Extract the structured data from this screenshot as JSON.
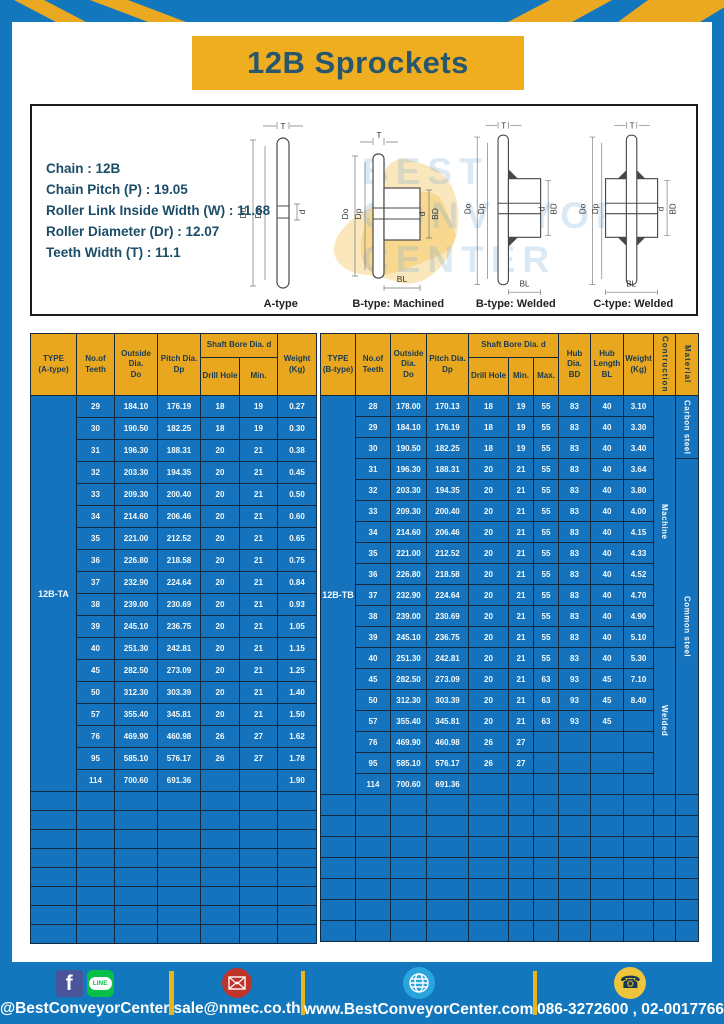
{
  "page": {
    "title": "12B Sprockets"
  },
  "specs": {
    "lines": [
      "Chain  :  12B",
      "Chain Pitch (P)  :  19.05",
      "Roller Link Inside Width (W) : 11.68",
      "Roller Diameter (Dr)  : 12.07",
      "Teeth Width (T)  :  11.1"
    ]
  },
  "diagrams": {
    "labels": [
      "A-type",
      "B-type: Machined",
      "B-type: Welded",
      "C-type: Welded"
    ],
    "dims": {
      "t": "T",
      "do": "Do",
      "dp": "Dp",
      "d": "d",
      "bd": "BD",
      "bl": "BL"
    },
    "watermark": [
      "BEST",
      "CONVEYOR",
      "CENTER"
    ]
  },
  "table_a": {
    "type_label": "12B-TA",
    "headers": {
      "type": "TYPE\n(A-type)",
      "teeth": "No.of\nTeeth",
      "outside": "Outside\nDia.\nDo",
      "pitch": "Pitch Dia.\nDp",
      "shaft_bore": "Shaft Bore Dia. d",
      "drill": "Drill Hole",
      "min": "Min.",
      "weight": "Weight\n(Kg)"
    },
    "rows": [
      [
        "29",
        "184.10",
        "176.19",
        "18",
        "19",
        "0.27"
      ],
      [
        "30",
        "190.50",
        "182.25",
        "18",
        "19",
        "0.30"
      ],
      [
        "31",
        "196.30",
        "188.31",
        "20",
        "21",
        "0.38"
      ],
      [
        "32",
        "203.30",
        "194.35",
        "20",
        "21",
        "0.45"
      ],
      [
        "33",
        "209.30",
        "200.40",
        "20",
        "21",
        "0.50"
      ],
      [
        "34",
        "214.60",
        "206.46",
        "20",
        "21",
        "0.60"
      ],
      [
        "35",
        "221.00",
        "212.52",
        "20",
        "21",
        "0.65"
      ],
      [
        "36",
        "226.80",
        "218.58",
        "20",
        "21",
        "0.75"
      ],
      [
        "37",
        "232.90",
        "224.64",
        "20",
        "21",
        "0.84"
      ],
      [
        "38",
        "239.00",
        "230.69",
        "20",
        "21",
        "0.93"
      ],
      [
        "39",
        "245.10",
        "236.75",
        "20",
        "21",
        "1.05"
      ],
      [
        "40",
        "251.30",
        "242.81",
        "20",
        "21",
        "1.15"
      ],
      [
        "45",
        "282.50",
        "273.09",
        "20",
        "21",
        "1.25"
      ],
      [
        "50",
        "312.30",
        "303.39",
        "20",
        "21",
        "1.40"
      ],
      [
        "57",
        "355.40",
        "345.81",
        "20",
        "21",
        "1.50"
      ],
      [
        "76",
        "469.90",
        "460.98",
        "26",
        "27",
        "1.62"
      ],
      [
        "95",
        "585.10",
        "576.17",
        "26",
        "27",
        "1.78"
      ],
      [
        "114",
        "700.60",
        "691.36",
        "",
        "",
        "1.90"
      ]
    ],
    "empty_rows": 8
  },
  "table_b": {
    "type_label": "12B-TB",
    "headers": {
      "type": "TYPE\n(B-type)",
      "teeth": "No.of\nTeeth",
      "outside": "Outside\nDia.\nDo",
      "pitch": "Pitch Dia.\nDp",
      "shaft_bore": "Shaft Bore Dia. d",
      "drill": "Drill Hole",
      "min": "Min.",
      "max": "Max.",
      "hub_dia": "Hub Dia.\nBD",
      "hub_len": "Hub\nLength\nBL",
      "weight": "Weight\n(Kg)",
      "construction": "Contruction",
      "material": "Material"
    },
    "rows": [
      [
        "28",
        "178.00",
        "170.13",
        "18",
        "19",
        "55",
        "83",
        "40",
        "3.10"
      ],
      [
        "29",
        "184.10",
        "176.19",
        "18",
        "19",
        "55",
        "83",
        "40",
        "3.30"
      ],
      [
        "30",
        "190.50",
        "182.25",
        "18",
        "19",
        "55",
        "83",
        "40",
        "3.40"
      ],
      [
        "31",
        "196.30",
        "188.31",
        "20",
        "21",
        "55",
        "83",
        "40",
        "3.64"
      ],
      [
        "32",
        "203.30",
        "194.35",
        "20",
        "21",
        "55",
        "83",
        "40",
        "3.80"
      ],
      [
        "33",
        "209.30",
        "200.40",
        "20",
        "21",
        "55",
        "83",
        "40",
        "4.00"
      ],
      [
        "34",
        "214.60",
        "206.46",
        "20",
        "21",
        "55",
        "83",
        "40",
        "4.15"
      ],
      [
        "35",
        "221.00",
        "212.52",
        "20",
        "21",
        "55",
        "83",
        "40",
        "4.33"
      ],
      [
        "36",
        "226.80",
        "218.58",
        "20",
        "21",
        "55",
        "83",
        "40",
        "4.52"
      ],
      [
        "37",
        "232.90",
        "224.64",
        "20",
        "21",
        "55",
        "83",
        "40",
        "4.70"
      ],
      [
        "38",
        "239.00",
        "230.69",
        "20",
        "21",
        "55",
        "83",
        "40",
        "4.90"
      ],
      [
        "39",
        "245.10",
        "236.75",
        "20",
        "21",
        "55",
        "83",
        "40",
        "5.10"
      ],
      [
        "40",
        "251.30",
        "242.81",
        "20",
        "21",
        "55",
        "83",
        "40",
        "5.30"
      ],
      [
        "45",
        "282.50",
        "273.09",
        "20",
        "21",
        "63",
        "93",
        "45",
        "7.10"
      ],
      [
        "50",
        "312.30",
        "303.39",
        "20",
        "21",
        "63",
        "93",
        "45",
        "8.40"
      ],
      [
        "57",
        "355.40",
        "345.81",
        "20",
        "21",
        "63",
        "93",
        "45",
        ""
      ],
      [
        "76",
        "469.90",
        "460.98",
        "26",
        "27",
        "",
        "",
        "",
        ""
      ],
      [
        "95",
        "585.10",
        "576.17",
        "26",
        "27",
        "",
        "",
        "",
        ""
      ],
      [
        "114",
        "700.60",
        "691.36",
        "",
        "",
        "",
        "",
        "",
        ""
      ]
    ],
    "construction_spans": [
      {
        "label": "Machine",
        "from": 0,
        "count": 12
      },
      {
        "label": "Welded",
        "from": 12,
        "count": 7
      }
    ],
    "material_spans": [
      {
        "label": "Carbon steel",
        "from": 0,
        "count": 3
      },
      {
        "label": "Common  steel",
        "from": 3,
        "count": 16
      }
    ],
    "empty_rows": 7
  },
  "footer": {
    "social_handle": "@BestConveyorCenter",
    "email": "sale@nmec.co.th",
    "website": "www.BestConveyorCenter.com",
    "phones": "086-3272600 , 02-0017766"
  },
  "colors": {
    "frame_blue": "#1377bd",
    "banner_gold": "#efae20",
    "header_gold": "#e8a71f",
    "table_blue": "#1473bc",
    "grid_navy": "#16293c",
    "title_navy": "#29566f",
    "line_green": "#08bf49",
    "facebook_blue": "#4a549b",
    "mail_red": "#bf332b",
    "globe_blue": "#2aa4dd",
    "phone_gold": "#eec43c"
  }
}
